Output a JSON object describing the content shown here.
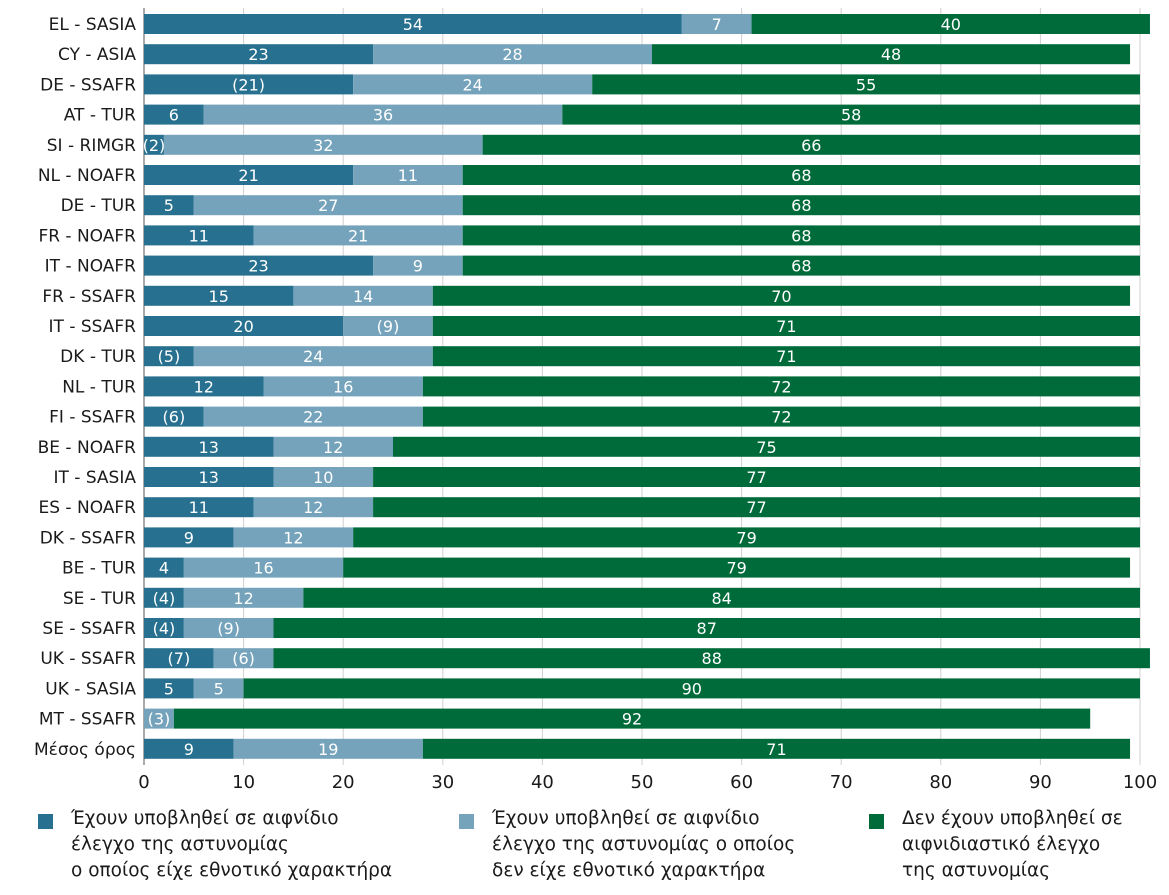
{
  "chart_data": {
    "type": "bar",
    "orientation": "horizontal",
    "stacked": true,
    "categories": [
      "EL - SASIA",
      "CY - ASIA",
      "DE - SSAFR",
      "AT - TUR",
      "SI - RIMGR",
      "NL - NOAFR",
      "DE - TUR",
      "FR - NOAFR",
      "IT - NOAFR",
      "FR - SSAFR",
      "IT - SSAFR",
      "DK - TUR",
      "NL - TUR",
      "FI - SSAFR",
      "BE - NOAFR",
      "IT - SASIA",
      "ES - NOAFR",
      "DK - SSAFR",
      "BE - TUR",
      "SE - TUR",
      "SE - SSAFR",
      "UK - SSAFR",
      "UK - SASIA",
      "MT - SSAFR",
      "Μέσος όρος"
    ],
    "series": [
      {
        "name": "Έχουν υποβληθεί σε αιφνίδιο έλεγχο της αστυνομίας ο οποίος είχε εθνοτικό χαρακτήρα",
        "color": "#27708f",
        "values": [
          54,
          23,
          21,
          6,
          2,
          21,
          5,
          11,
          23,
          15,
          20,
          5,
          12,
          6,
          13,
          13,
          11,
          9,
          4,
          4,
          4,
          7,
          5,
          0,
          9
        ],
        "labels": [
          "54",
          "23",
          "(21)",
          "6",
          "(2)",
          "21",
          "5",
          "11",
          "23",
          "15",
          "20",
          "(5)",
          "12",
          "(6)",
          "13",
          "13",
          "11",
          "9",
          "4",
          "(4)",
          "(4)",
          "(7)",
          "5",
          "",
          "9"
        ]
      },
      {
        "name": "Έχουν υποβληθεί σε αιφνίδιο έλεγχο της αστυνομίας ο οποίος δεν είχε εθνοτικό χαρακτήρα",
        "color": "#75a3bb",
        "values": [
          7,
          28,
          24,
          36,
          32,
          11,
          27,
          21,
          9,
          14,
          9,
          24,
          16,
          22,
          12,
          10,
          12,
          12,
          16,
          12,
          9,
          6,
          5,
          3,
          19
        ],
        "labels": [
          "7",
          "28",
          "24",
          "36",
          "32",
          "11",
          "27",
          "21",
          "9",
          "14",
          "(9)",
          "24",
          "16",
          "22",
          "12",
          "10",
          "12",
          "12",
          "16",
          "12",
          "(9)",
          "(6)",
          "5",
          "(3)",
          "19"
        ]
      },
      {
        "name": "Δεν έχουν υποβληθεί σε αιφνιδιαστικό έλεγχο της αστυνομίας",
        "color": "#006b3a",
        "values": [
          40,
          48,
          55,
          58,
          66,
          68,
          68,
          68,
          68,
          70,
          71,
          71,
          72,
          72,
          75,
          77,
          77,
          79,
          79,
          84,
          87,
          88,
          90,
          92,
          71
        ],
        "labels": [
          "40",
          "48",
          "55",
          "58",
          "66",
          "68",
          "68",
          "68",
          "68",
          "70",
          "71",
          "71",
          "72",
          "72",
          "75",
          "77",
          "77",
          "79",
          "79",
          "84",
          "87",
          "88",
          "90",
          "92",
          "71"
        ]
      }
    ],
    "xlim": [
      0,
      100
    ],
    "xticks": [
      "0",
      "10",
      "20",
      "30",
      "40",
      "50",
      "60",
      "70",
      "80",
      "90",
      "100"
    ],
    "grid": true,
    "legend_position": "bottom"
  },
  "legend": [
    {
      "text": "Έχουν υποβληθεί σε αιφνίδιο\nέλεγχο της αστυνομίας\nο οποίος είχε εθνοτικό χαρακτήρα",
      "color": "#27708f"
    },
    {
      "text": "Έχουν υποβληθεί σε αιφνίδιο\nέλεγχο της αστυνομίας ο οποίος\nδεν είχε εθνοτικό χαρακτήρα",
      "color": "#75a3bb"
    },
    {
      "text": "Δεν έχουν υποβληθεί σε\nαιφνιδιαστικό έλεγχο\nτης αστυνομίας",
      "color": "#006b3a"
    }
  ]
}
